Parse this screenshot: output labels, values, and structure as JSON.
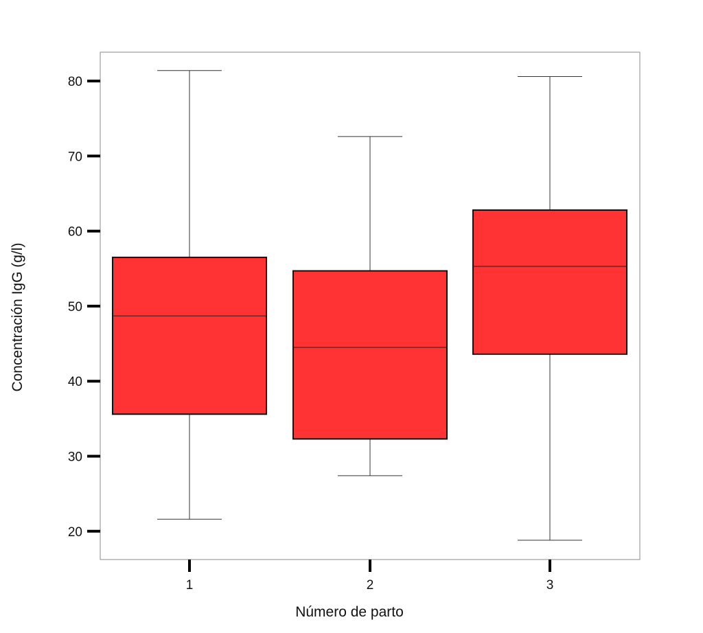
{
  "chart_data": {
    "type": "boxplot",
    "xlabel": "Número de parto",
    "ylabel": "Concentración IgG (g/l)",
    "categories": [
      "1",
      "2",
      "3"
    ],
    "boxes": [
      {
        "category": "1",
        "min": 21.6,
        "q1": 35.6,
        "median": 48.7,
        "q3": 56.5,
        "max": 81.4
      },
      {
        "category": "2",
        "min": 27.4,
        "q1": 32.3,
        "median": 44.5,
        "q3": 54.7,
        "max": 72.6
      },
      {
        "category": "3",
        "min": 18.8,
        "q1": 43.6,
        "median": 55.3,
        "q3": 62.8,
        "max": 80.6
      }
    ],
    "ylim": [
      16.3,
      84
    ],
    "yticks": [
      20,
      30,
      40,
      50,
      60,
      70,
      80
    ],
    "ytick_labels": [
      "20",
      "30",
      "40",
      "50",
      "60",
      "70",
      "80"
    ],
    "grid": false,
    "box_color": "#ff3333",
    "colors": {
      "box_fill": "#ff3333",
      "box_stroke": "#111111",
      "whisker": "#333333",
      "frame": "#888888"
    }
  }
}
